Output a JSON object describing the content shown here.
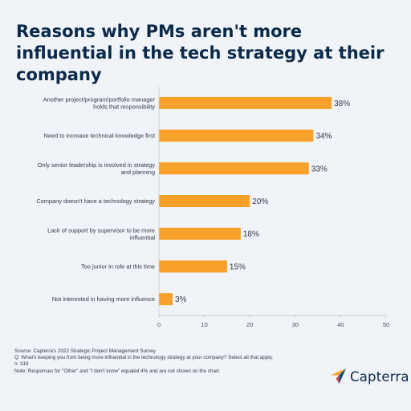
{
  "title": "Reasons why PMs aren't more influential in the tech strategy at their company",
  "chart_data": {
    "type": "bar",
    "orientation": "horizontal",
    "categories": [
      [
        "Another project/program/portfolio manager",
        "holds that responsibility"
      ],
      [
        "Need to increase technical knowledge first"
      ],
      [
        "Only senior leadership is involved in strategy",
        "and planning"
      ],
      [
        "Company doesn't have a technology strategy"
      ],
      [
        "Lack of support by supervisor to be more",
        "influential"
      ],
      [
        "Too junior in role at this time"
      ],
      [
        "Not interested in having more influence"
      ]
    ],
    "values": [
      38,
      34,
      33,
      20,
      18,
      15,
      3
    ],
    "value_labels": [
      "38%",
      "34%",
      "33%",
      "20%",
      "18%",
      "15%",
      "3%"
    ],
    "xlim": [
      0,
      50
    ],
    "x_ticks": [
      0,
      10,
      20,
      30,
      40,
      50
    ],
    "grid": false,
    "bar_color": "#f7a12b",
    "axis_color": "#c5ccd6"
  },
  "footer": {
    "source": "Source: Capterra's 2022 Strategic Project Management Survey",
    "question": "Q: What's keeping you from being more influential in the technology strategy at your company? Select all that apply.",
    "n": "n: 319",
    "note": "Note: Responses for \"Other\" and \"I don't know\" equaled 4% and are not shown on the chart."
  },
  "logo": {
    "name": "Capterra",
    "icon": "capterra-arrow-icon",
    "colors": [
      "#ff9d28",
      "#68c5ed",
      "#044d80",
      "#e54747"
    ]
  }
}
